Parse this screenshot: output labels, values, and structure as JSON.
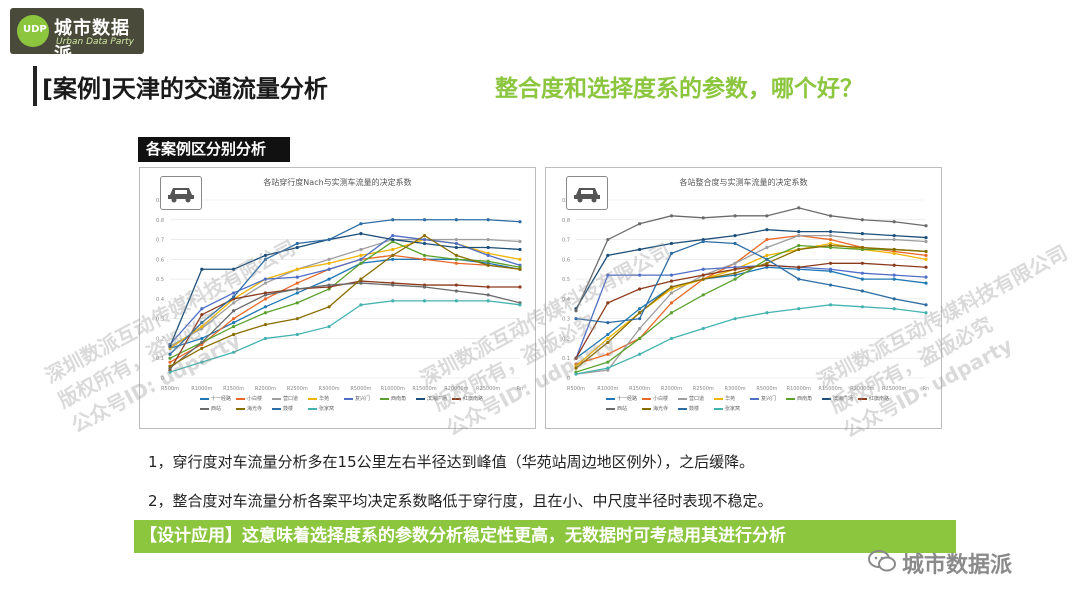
{
  "logo": {
    "title": "城市数据派",
    "subtitle": "Urban Data Party"
  },
  "header": {
    "title": "[案例]天津的交通流量分析",
    "question": "整合度和选择度系的参数，哪个好？"
  },
  "section_label": "各案例区分别分析",
  "watermark": {
    "line1": "深圳数派互动传媒科技有限公司",
    "line2": "版权所有，盗版必究",
    "line3": "公众号ID: udparty"
  },
  "points": [
    "1，穿行度对车流量分析多在15公里左右半径达到峰值（华苑站周边地区例外），之后缓降。",
    "2，整合度对车流量分析各案平均决定系数略低于穿行度，且在小、中尺度半径时表现不稳定。"
  ],
  "highlight": "【设计应用】这意味着选择度系的参数分析稳定性更高，无数据时可考虑用其进行分析",
  "footer": {
    "brand": "城市数据派"
  },
  "chart_data": [
    {
      "type": "line",
      "title": "各站穿行度Nach与实测车流量的决定系数",
      "ylim": [
        0,
        0.9
      ],
      "yticks": [
        "0",
        "0.1",
        "0.2",
        "0.3",
        "0.4",
        "0.5",
        "0.6",
        "0.7",
        "0.8",
        "0.9"
      ],
      "categories": [
        "R500m",
        "R1000m",
        "R1500m",
        "R2000m",
        "R2500m",
        "R3000m",
        "R5000m",
        "R10000m",
        "R15000m",
        "R20000m",
        "R25000m",
        "Rn"
      ],
      "grid": true,
      "legend": "bottom",
      "series": [
        {
          "name": "十一经路",
          "color": "#1f77b4",
          "values": [
            0.15,
            0.2,
            0.28,
            0.36,
            0.43,
            0.5,
            0.58,
            0.6,
            0.6,
            0.6,
            0.58,
            0.55
          ]
        },
        {
          "name": "小白楼",
          "color": "#e8692a",
          "values": [
            0.08,
            0.17,
            0.3,
            0.4,
            0.48,
            0.55,
            0.6,
            0.62,
            0.6,
            0.58,
            0.57,
            0.55
          ]
        },
        {
          "name": "营口道",
          "color": "#9e9e9e",
          "values": [
            0.16,
            0.25,
            0.38,
            0.48,
            0.55,
            0.6,
            0.65,
            0.7,
            0.7,
            0.7,
            0.7,
            0.69
          ]
        },
        {
          "name": "华苑",
          "color": "#f0b400",
          "values": [
            0.15,
            0.26,
            0.4,
            0.5,
            0.55,
            0.58,
            0.62,
            0.65,
            0.7,
            0.68,
            0.63,
            0.6
          ]
        },
        {
          "name": "复兴门",
          "color": "#4f6ec6",
          "values": [
            0.17,
            0.35,
            0.43,
            0.5,
            0.51,
            0.55,
            0.6,
            0.72,
            0.7,
            0.68,
            0.62,
            0.57
          ]
        },
        {
          "name": "西南角",
          "color": "#5aa02c",
          "values": [
            0.1,
            0.18,
            0.26,
            0.33,
            0.38,
            0.45,
            0.58,
            0.69,
            0.62,
            0.6,
            0.59,
            0.56
          ]
        },
        {
          "name": "滨海广场",
          "color": "#1c4f7a",
          "values": [
            0.16,
            0.55,
            0.55,
            0.62,
            0.66,
            0.7,
            0.73,
            0.7,
            0.68,
            0.66,
            0.66,
            0.65
          ]
        },
        {
          "name": "红旗南路",
          "color": "#8c3a1c",
          "values": [
            0.04,
            0.32,
            0.4,
            0.43,
            0.45,
            0.46,
            0.49,
            0.48,
            0.47,
            0.47,
            0.46,
            0.46
          ]
        },
        {
          "name": "西站",
          "color": "#6b6b6b",
          "values": [
            0.05,
            0.18,
            0.34,
            0.42,
            0.45,
            0.47,
            0.48,
            0.47,
            0.46,
            0.44,
            0.42,
            0.38
          ]
        },
        {
          "name": "海光寺",
          "color": "#8a6d00",
          "values": [
            0.06,
            0.15,
            0.22,
            0.27,
            0.3,
            0.36,
            0.5,
            0.62,
            0.72,
            0.62,
            0.57,
            0.55
          ]
        },
        {
          "name": "鼓楼",
          "color": "#2e6da4",
          "values": [
            0.12,
            0.28,
            0.41,
            0.6,
            0.68,
            0.7,
            0.78,
            0.8,
            0.8,
            0.8,
            0.8,
            0.79
          ]
        },
        {
          "name": "张家窝",
          "color": "#44b3b0",
          "values": [
            0.03,
            0.08,
            0.13,
            0.2,
            0.22,
            0.26,
            0.37,
            0.39,
            0.39,
            0.39,
            0.39,
            0.37
          ]
        }
      ]
    },
    {
      "type": "line",
      "title": "各站整合度与实测车流量的决定系数",
      "ylim": [
        0,
        0.9
      ],
      "yticks": [
        "0",
        "0.1",
        "0.2",
        "0.3",
        "0.4",
        "0.5",
        "0.6",
        "0.7",
        "0.8",
        "0.9"
      ],
      "categories": [
        "R500m",
        "R1000m",
        "R1500m",
        "R2000m",
        "R2500m",
        "R3000m",
        "R5000m",
        "R10000m",
        "R15000m",
        "R20000m",
        "R25000m",
        "Rn"
      ],
      "grid": true,
      "legend": "bottom",
      "series": [
        {
          "name": "十一经路",
          "color": "#1f77b4",
          "values": [
            0.1,
            0.22,
            0.35,
            0.46,
            0.5,
            0.52,
            0.56,
            0.55,
            0.54,
            0.5,
            0.5,
            0.48
          ]
        },
        {
          "name": "小白楼",
          "color": "#e8692a",
          "values": [
            0.07,
            0.12,
            0.2,
            0.38,
            0.5,
            0.58,
            0.7,
            0.72,
            0.7,
            0.66,
            0.64,
            0.62
          ]
        },
        {
          "name": "营口道",
          "color": "#9e9e9e",
          "values": [
            0.02,
            0.04,
            0.25,
            0.43,
            0.52,
            0.58,
            0.66,
            0.72,
            0.72,
            0.7,
            0.7,
            0.69
          ]
        },
        {
          "name": "华苑",
          "color": "#f0b400",
          "values": [
            0.06,
            0.2,
            0.33,
            0.45,
            0.5,
            0.55,
            0.62,
            0.65,
            0.68,
            0.65,
            0.63,
            0.6
          ]
        },
        {
          "name": "复兴门",
          "color": "#4f6ec6",
          "values": [
            0.1,
            0.52,
            0.52,
            0.52,
            0.55,
            0.56,
            0.57,
            0.56,
            0.55,
            0.53,
            0.52,
            0.51
          ]
        },
        {
          "name": "西南角",
          "color": "#5aa02c",
          "values": [
            0.03,
            0.08,
            0.2,
            0.33,
            0.42,
            0.5,
            0.6,
            0.67,
            0.66,
            0.65,
            0.65,
            0.64
          ]
        },
        {
          "name": "滨海广场",
          "color": "#1c4f7a",
          "values": [
            0.35,
            0.62,
            0.65,
            0.68,
            0.7,
            0.72,
            0.75,
            0.74,
            0.74,
            0.73,
            0.72,
            0.71
          ]
        },
        {
          "name": "红旗南路",
          "color": "#8c3a1c",
          "values": [
            0.1,
            0.38,
            0.45,
            0.49,
            0.52,
            0.55,
            0.57,
            0.56,
            0.58,
            0.58,
            0.57,
            0.56
          ]
        },
        {
          "name": "西站",
          "color": "#6b6b6b",
          "values": [
            0.34,
            0.7,
            0.78,
            0.82,
            0.81,
            0.82,
            0.82,
            0.86,
            0.82,
            0.8,
            0.79,
            0.77
          ]
        },
        {
          "name": "海光寺",
          "color": "#8a6d00",
          "values": [
            0.05,
            0.18,
            0.33,
            0.46,
            0.5,
            0.53,
            0.58,
            0.65,
            0.67,
            0.66,
            0.65,
            0.64
          ]
        },
        {
          "name": "鼓楼",
          "color": "#2e6da4",
          "values": [
            0.3,
            0.28,
            0.3,
            0.63,
            0.69,
            0.68,
            0.6,
            0.5,
            0.47,
            0.44,
            0.4,
            0.37
          ]
        },
        {
          "name": "张家窝",
          "color": "#44b3b0",
          "values": [
            0.02,
            0.05,
            0.12,
            0.2,
            0.25,
            0.3,
            0.33,
            0.35,
            0.37,
            0.36,
            0.35,
            0.33
          ]
        }
      ]
    }
  ]
}
